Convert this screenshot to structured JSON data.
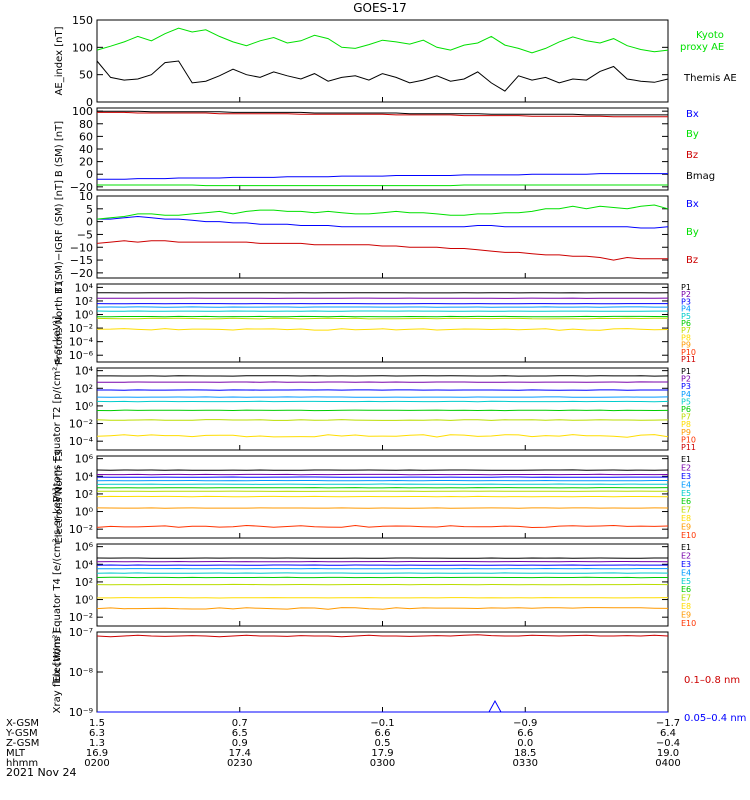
{
  "title": "GOES-17",
  "date": "2021 Nov 24",
  "colors": {
    "black": "#000000",
    "green": "#00e000",
    "blue": "#0000ff",
    "red": "#cc0000",
    "p_colors": [
      "#000000",
      "#7700aa",
      "#0000ff",
      "#0099ff",
      "#00cccc",
      "#00cc00",
      "#bbdd00",
      "#ffdd00",
      "#ff9900",
      "#ff3300",
      "#cc0000"
    ],
    "e_colors": [
      "#000000",
      "#7700aa",
      "#0000ff",
      "#0099ff",
      "#00cccc",
      "#00cc00",
      "#bbdd00",
      "#ffdd00",
      "#ff9900",
      "#ff3300",
      "#cc0000"
    ]
  },
  "chart_data": [
    {
      "type": "line",
      "ylabel": "AE_index [nT]",
      "ylim": [
        0,
        150
      ],
      "yticks": [
        "150",
        "100",
        "50",
        "0"
      ],
      "yscale": "linear",
      "legend": "right",
      "series": [
        {
          "name": "Kyoto proxy AE",
          "color": "green",
          "values": [
            95,
            102,
            110,
            120,
            112,
            125,
            135,
            128,
            132,
            120,
            110,
            103,
            112,
            118,
            108,
            112,
            122,
            116,
            100,
            98,
            105,
            113,
            110,
            106,
            113,
            100,
            95,
            104,
            108,
            120,
            104,
            98,
            90,
            98,
            110,
            119,
            112,
            108,
            116,
            103,
            96,
            92,
            95
          ]
        },
        {
          "name": "Themis AE",
          "color": "black",
          "values": [
            75,
            45,
            40,
            42,
            50,
            72,
            75,
            35,
            38,
            48,
            60,
            50,
            45,
            55,
            48,
            42,
            52,
            38,
            45,
            48,
            40,
            52,
            45,
            35,
            40,
            48,
            38,
            42,
            55,
            35,
            20,
            48,
            40,
            45,
            35,
            42,
            40,
            56,
            65,
            42,
            38,
            36,
            42
          ]
        }
      ]
    },
    {
      "type": "line",
      "ylabel": "B (SM) [nT]",
      "ylim": [
        -25,
        105
      ],
      "yticks": [
        "100",
        "80",
        "60",
        "40",
        "20",
        "0",
        "−20"
      ],
      "yscale": "linear",
      "legend": "right",
      "series": [
        {
          "name": "Bx",
          "color": "blue",
          "values": [
            -8,
            -8,
            -8,
            -7,
            -7,
            -7,
            -6,
            -6,
            -6,
            -6,
            -5,
            -5,
            -5,
            -5,
            -4,
            -4,
            -4,
            -4,
            -3,
            -3,
            -3,
            -3,
            -2,
            -2,
            -2,
            -2,
            -2,
            -1,
            -1,
            -1,
            -1,
            -1,
            0,
            0,
            0,
            0,
            0,
            1,
            1,
            1,
            1,
            1,
            1
          ]
        },
        {
          "name": "By",
          "color": "green",
          "values": [
            -17,
            -17,
            -17,
            -17,
            -17,
            -17,
            -17,
            -17,
            -18,
            -18,
            -18,
            -18,
            -18,
            -18,
            -18,
            -18,
            -18,
            -18,
            -18,
            -18,
            -18,
            -18,
            -18,
            -18,
            -18,
            -18,
            -18,
            -17,
            -17,
            -17,
            -17,
            -17,
            -17,
            -17,
            -17,
            -17,
            -17,
            -17,
            -17,
            -17,
            -17,
            -17,
            -17
          ]
        },
        {
          "name": "Bz",
          "color": "red",
          "values": [
            98,
            98,
            98,
            97,
            97,
            97,
            97,
            97,
            97,
            96,
            96,
            96,
            96,
            96,
            96,
            95,
            95,
            95,
            95,
            95,
            95,
            95,
            94,
            94,
            94,
            94,
            94,
            93,
            93,
            93,
            93,
            93,
            92,
            92,
            92,
            92,
            92,
            92,
            91,
            91,
            91,
            91,
            91
          ]
        },
        {
          "name": "Bmag",
          "color": "black",
          "values": [
            100,
            100,
            100,
            100,
            99,
            99,
            99,
            99,
            99,
            99,
            98,
            98,
            98,
            98,
            98,
            98,
            97,
            97,
            97,
            97,
            97,
            97,
            97,
            96,
            96,
            96,
            96,
            96,
            96,
            95,
            95,
            95,
            95,
            95,
            95,
            95,
            94,
            94,
            94,
            94,
            94,
            94,
            94
          ]
        }
      ]
    },
    {
      "type": "line",
      "ylabel": "B (SM)−IGRF (SM) [nT]",
      "ylim": [
        -22,
        10
      ],
      "yticks": [
        "10",
        "5",
        "0",
        "−5",
        "−10",
        "−15",
        "−20"
      ],
      "yscale": "linear",
      "legend": "right",
      "series": [
        {
          "name": "Bx",
          "color": "blue",
          "values": [
            1,
            1,
            1.5,
            2,
            1.5,
            1,
            1,
            0.5,
            0,
            0,
            -0.5,
            -0.5,
            -1,
            -1,
            -1,
            -1.5,
            -1.5,
            -1.5,
            -2,
            -2,
            -2,
            -2,
            -2,
            -2,
            -2,
            -2,
            -2,
            -2,
            -1.5,
            -1.5,
            -2,
            -2,
            -2,
            -2,
            -2,
            -2,
            -2,
            -2,
            -2,
            -2,
            -2.5,
            -2.5,
            -2
          ]
        },
        {
          "name": "By",
          "color": "green",
          "values": [
            1,
            1.5,
            2,
            3,
            3,
            2.5,
            2.5,
            3,
            3.5,
            4,
            3,
            4,
            4.5,
            4.5,
            4,
            4,
            3.5,
            4,
            3.5,
            3,
            3,
            3.5,
            4,
            3.5,
            3.5,
            3,
            2.5,
            2.5,
            3,
            3,
            3.5,
            3.5,
            4,
            5,
            5,
            6,
            5,
            6,
            5.5,
            5,
            6,
            6.5,
            5
          ]
        },
        {
          "name": "Bz",
          "color": "red",
          "values": [
            -8.5,
            -8,
            -7.5,
            -8,
            -7.5,
            -7.5,
            -8,
            -8,
            -8,
            -8,
            -8,
            -8,
            -8.5,
            -8.5,
            -8.5,
            -8.5,
            -9,
            -9,
            -9,
            -9,
            -9,
            -9.5,
            -9.5,
            -10,
            -10,
            -10,
            -10.5,
            -10.5,
            -11,
            -11.5,
            -12,
            -12,
            -12.5,
            -13,
            -13,
            -13.5,
            -13.5,
            -14,
            -15,
            -14,
            -14.5,
            -14.5,
            -14.5
          ]
        }
      ]
    },
    {
      "type": "line",
      "ylabel": "Protons North T1",
      "yscale": "log",
      "ylim": [
        -7,
        4.5
      ],
      "yticks": [
        "10⁴",
        "10²",
        "10⁰",
        "10⁻²",
        "10⁻⁴",
        "10⁻⁶"
      ],
      "legend": "right",
      "series": [
        {
          "name": "P1",
          "level": 3.2,
          "noise": 0.02
        },
        {
          "name": "P2",
          "level": 2.4,
          "noise": 0.02
        },
        {
          "name": "P3",
          "level": 1.6,
          "noise": 0.02
        },
        {
          "name": "P4",
          "level": 1.1,
          "noise": 0.02
        },
        {
          "name": "P5",
          "level": 0.5,
          "noise": 0.02
        },
        {
          "name": "P6",
          "level": -0.3,
          "noise": 0.03
        },
        {
          "name": "P7",
          "level": -0.6,
          "noise": 0.05
        },
        {
          "name": "P8",
          "level": -2.2,
          "noise": 0.12
        },
        {
          "name": "P9",
          "level": -9,
          "noise": 0
        },
        {
          "name": "P10",
          "level": -9,
          "noise": 0
        },
        {
          "name": "P11",
          "level": -9,
          "noise": 0
        }
      ]
    },
    {
      "type": "line",
      "ylabel": "Protons Equator T2 [p/(cm²-s-sr-keV)]",
      "yscale": "log",
      "ylim": [
        -5,
        4.3
      ],
      "yticks": [
        "10⁴",
        "10²",
        "10⁰",
        "10⁻²",
        "10⁻⁴"
      ],
      "legend": "right",
      "series": [
        {
          "name": "P1",
          "level": 3.4,
          "noise": 0.02
        },
        {
          "name": "P2",
          "level": 2.7,
          "noise": 0.02
        },
        {
          "name": "P3",
          "level": 1.8,
          "noise": 0.02
        },
        {
          "name": "P4",
          "level": 1.0,
          "noise": 0.02
        },
        {
          "name": "P5",
          "level": 0.5,
          "noise": 0.02
        },
        {
          "name": "P6",
          "level": -0.5,
          "noise": 0.03
        },
        {
          "name": "P7",
          "level": -1.6,
          "noise": 0.05
        },
        {
          "name": "P8",
          "level": -3.4,
          "noise": 0.15
        },
        {
          "name": "P9",
          "level": -9,
          "noise": 0
        },
        {
          "name": "P10",
          "level": -9,
          "noise": 0
        },
        {
          "name": "P11",
          "level": -9,
          "noise": 0
        }
      ]
    },
    {
      "type": "line",
      "ylabel": "Electrons North T3",
      "yscale": "log",
      "ylim": [
        -3,
        6.3
      ],
      "yticks": [
        "10⁶",
        "10⁴",
        "10²",
        "10⁰",
        "10⁻²"
      ],
      "legend": "right",
      "series": [
        {
          "name": "E1",
          "level": 4.7,
          "noise": 0.02
        },
        {
          "name": "E2",
          "level": 4.2,
          "noise": 0.02
        },
        {
          "name": "E3",
          "level": 3.9,
          "noise": 0.02
        },
        {
          "name": "E4",
          "level": 3.5,
          "noise": 0.02
        },
        {
          "name": "E5",
          "level": 3.1,
          "noise": 0.02
        },
        {
          "name": "E6",
          "level": 2.7,
          "noise": 0.02
        },
        {
          "name": "E7",
          "level": 2.3,
          "noise": 0.02
        },
        {
          "name": "E8",
          "level": 1.7,
          "noise": 0.02
        },
        {
          "name": "E9",
          "level": 0.4,
          "noise": 0.02
        },
        {
          "name": "E10",
          "level": -1.7,
          "noise": 0.12
        }
      ]
    },
    {
      "type": "line",
      "ylabel": "Electrons Equator T4 [e/(cm²-s-sr-keV)]",
      "yscale": "log",
      "ylim": [
        -3,
        6.3
      ],
      "yticks": [
        "10⁶",
        "10⁴",
        "10²",
        "10⁰",
        "10⁻²"
      ],
      "legend": "right",
      "series": [
        {
          "name": "E1",
          "level": 4.7,
          "noise": 0.02
        },
        {
          "name": "E2",
          "level": 4.3,
          "noise": 0.02
        },
        {
          "name": "E3",
          "level": 3.9,
          "noise": 0.02
        },
        {
          "name": "E4",
          "level": 3.5,
          "noise": 0.02
        },
        {
          "name": "E5",
          "level": 3.0,
          "noise": 0.02
        },
        {
          "name": "E6",
          "level": 2.5,
          "noise": 0.02
        },
        {
          "name": "E7",
          "level": 1.7,
          "noise": 0.02
        },
        {
          "name": "E8",
          "level": 0.2,
          "noise": 0.02
        },
        {
          "name": "E9",
          "level": -1.0,
          "noise": 0.1
        },
        {
          "name": "E10",
          "level": -9,
          "noise": 0
        }
      ]
    },
    {
      "type": "line",
      "ylabel": "Xray flux [W/m²]",
      "yscale": "log",
      "ylim": [
        -9,
        -7
      ],
      "yticks": [
        "10⁻⁷",
        "10⁻⁸",
        "10⁻⁹"
      ],
      "legend": "right",
      "series": [
        {
          "name": "0.1–0.8 nm",
          "color": "red",
          "values": [
            -7.1,
            -7.12,
            -7.1,
            -7.08,
            -7.1,
            -7.11,
            -7.1,
            -7.09,
            -7.1,
            -7.12,
            -7.1,
            -7.08,
            -7.1,
            -7.1,
            -7.11,
            -7.09,
            -7.1,
            -7.1,
            -7.12,
            -7.1,
            -7.08,
            -7.1,
            -7.1,
            -7.11,
            -7.1,
            -7.09,
            -7.1,
            -7.08,
            -7.07,
            -7.09,
            -7.1,
            -7.1,
            -7.08,
            -7.09,
            -7.1,
            -7.09,
            -7.08,
            -7.1,
            -7.1,
            -7.09,
            -7.1,
            -7.08,
            -7.1
          ]
        },
        {
          "name": "0.05–0.4 nm",
          "color": "blue",
          "values": [
            -9,
            -9,
            -9,
            -9,
            -9,
            -9,
            -9,
            -9,
            -9,
            -9,
            -9,
            -9,
            -9,
            -9,
            -9,
            -9,
            -9,
            -9,
            -9,
            -9,
            -9,
            -9,
            -9,
            -9,
            -9,
            -9,
            -9,
            -9,
            -9,
            -9,
            -9,
            -9,
            -9,
            -9,
            -9,
            -9,
            -9,
            -9,
            -9,
            -9,
            -9,
            -9,
            -9
          ]
        }
      ]
    }
  ],
  "footer": {
    "row_labels": [
      "X-GSM",
      "Y-GSM",
      "Z-GSM",
      "MLT",
      "hhmm"
    ],
    "columns": [
      [
        "1.5",
        "6.3",
        "1.3",
        "16.9",
        "0200"
      ],
      [
        "0.7",
        "6.5",
        "0.9",
        "17.4",
        "0230"
      ],
      [
        "−0.1",
        "6.6",
        "0.5",
        "17.9",
        "0300"
      ],
      [
        "−0.9",
        "6.6",
        "0.0",
        "18.5",
        "0330"
      ],
      [
        "−1.7",
        "6.4",
        "−0.4",
        "19.0",
        "0400"
      ]
    ]
  }
}
